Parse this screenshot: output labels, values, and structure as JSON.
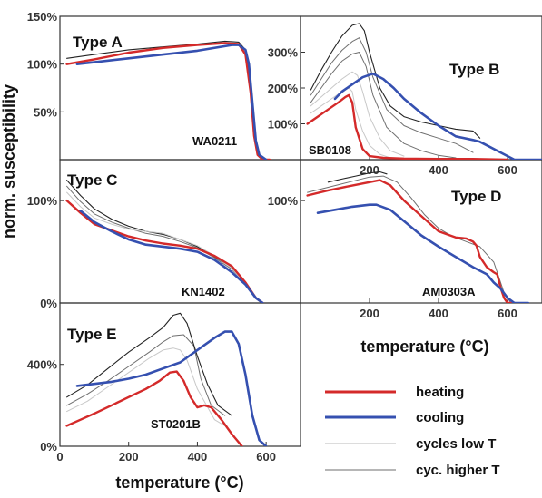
{
  "figure": {
    "ylabel": "norm. susceptibility",
    "xlabel_left": "temperature (°C)",
    "xlabel_right": "temperature (°C)"
  },
  "legend": [
    {
      "label": "heating",
      "color": "#d42a2a"
    },
    {
      "label": "cooling",
      "color": "#3550b0"
    },
    {
      "label": "cycles low T",
      "color": "#c8c8c8"
    },
    {
      "label": "cyc. higher T",
      "color": "#8a8a8a"
    }
  ],
  "colors": {
    "heating": "#d42a2a",
    "cooling": "#3550b0",
    "cycles_low": "#c8c8c8",
    "cycles_high": "#6f6f6f",
    "cycles_dark": "#222222"
  },
  "chart_data": [
    {
      "type": "line",
      "title": "Type A",
      "sample": "WA0211",
      "xlim": [
        0,
        700
      ],
      "ylim": [
        0,
        150
      ],
      "yticks": [
        {
          "v": 50,
          "label": "50%"
        },
        {
          "v": 100,
          "label": "100%"
        },
        {
          "v": 150,
          "label": "150%"
        }
      ],
      "xticks": [],
      "series": [
        {
          "role": "cycles_dark",
          "x": [
            20,
            100,
            200,
            300,
            400,
            480,
            520,
            540,
            555,
            565,
            575,
            590
          ],
          "y": [
            106,
            110,
            115,
            118,
            121,
            124,
            123,
            115,
            80,
            30,
            6,
            0
          ]
        },
        {
          "role": "heating",
          "x": [
            20,
            100,
            200,
            300,
            400,
            480,
            520,
            540,
            555,
            565,
            575,
            590,
            610
          ],
          "y": [
            100,
            105,
            112,
            117,
            120,
            122,
            121,
            110,
            70,
            25,
            5,
            0,
            0
          ]
        },
        {
          "role": "cooling",
          "x": [
            600,
            580,
            570,
            560,
            550,
            540,
            520,
            500,
            400,
            300,
            200,
            100,
            50
          ],
          "y": [
            0,
            5,
            20,
            60,
            100,
            115,
            120,
            120,
            114,
            110,
            106,
            102,
            100
          ]
        }
      ]
    },
    {
      "type": "line",
      "title": "Type B",
      "sample": "SB0108",
      "xlim": [
        0,
        700
      ],
      "ylim": [
        0,
        400
      ],
      "yticks": [
        {
          "v": 100,
          "label": "100%"
        },
        {
          "v": 200,
          "label": "200%"
        },
        {
          "v": 300,
          "label": "300%"
        }
      ],
      "xticks": [
        {
          "v": 200,
          "label": "200"
        },
        {
          "v": 400,
          "label": "400"
        },
        {
          "v": 600,
          "label": "600"
        }
      ],
      "series": [
        {
          "role": "cycles_low",
          "x": [
            30,
            60,
            90,
            120,
            140,
            150,
            160,
            180,
            200,
            230,
            260
          ],
          "y": [
            130,
            150,
            170,
            190,
            200,
            190,
            140,
            80,
            40,
            15,
            5
          ]
        },
        {
          "role": "cycles_low",
          "x": [
            30,
            60,
            90,
            120,
            150,
            165,
            180,
            200,
            230,
            260,
            300
          ],
          "y": [
            150,
            175,
            200,
            225,
            245,
            235,
            190,
            120,
            60,
            25,
            10
          ]
        },
        {
          "role": "cycles_high",
          "x": [
            30,
            60,
            90,
            120,
            150,
            170,
            190,
            210,
            250,
            300,
            350,
            400,
            450
          ],
          "y": [
            160,
            200,
            240,
            275,
            295,
            300,
            260,
            180,
            90,
            45,
            25,
            12,
            5
          ]
        },
        {
          "role": "cycles_high",
          "x": [
            30,
            60,
            90,
            120,
            150,
            170,
            190,
            210,
            250,
            300,
            350,
            400,
            450,
            500
          ],
          "y": [
            180,
            225,
            270,
            305,
            330,
            340,
            300,
            230,
            140,
            95,
            75,
            60,
            45,
            20
          ]
        },
        {
          "role": "cycles_dark",
          "x": [
            30,
            60,
            90,
            120,
            150,
            170,
            185,
            200,
            230,
            260,
            300,
            350,
            400,
            450,
            500,
            520
          ],
          "y": [
            195,
            250,
            300,
            345,
            375,
            380,
            360,
            300,
            200,
            150,
            120,
            105,
            95,
            85,
            80,
            60
          ]
        },
        {
          "role": "heating",
          "x": [
            20,
            50,
            80,
            110,
            130,
            140,
            150,
            160,
            180,
            200,
            240,
            300,
            400,
            500,
            600
          ],
          "y": [
            100,
            120,
            140,
            160,
            175,
            180,
            160,
            90,
            30,
            10,
            5,
            3,
            2,
            2,
            0
          ]
        },
        {
          "role": "cooling",
          "x": [
            700,
            620,
            580,
            540,
            520,
            500,
            450,
            400,
            350,
            300,
            270,
            240,
            210,
            180,
            150,
            120,
            100
          ],
          "y": [
            0,
            0,
            20,
            40,
            50,
            55,
            65,
            95,
            130,
            170,
            200,
            225,
            240,
            230,
            210,
            190,
            170
          ]
        }
      ]
    },
    {
      "type": "line",
      "title": "Type C",
      "sample": "KN1402",
      "xlim": [
        0,
        700
      ],
      "ylim": [
        0,
        140
      ],
      "yticks": [
        {
          "v": 0,
          "label": "0%"
        },
        {
          "v": 100,
          "label": "100%"
        }
      ],
      "xticks": [],
      "series": [
        {
          "role": "cycles_dark",
          "x": [
            20,
            60,
            100,
            150,
            200,
            250,
            300,
            350,
            400,
            450,
            500,
            540,
            570,
            590
          ],
          "y": [
            120,
            105,
            92,
            82,
            75,
            70,
            67,
            62,
            55,
            45,
            35,
            20,
            5,
            0
          ]
        },
        {
          "role": "cycles_high",
          "x": [
            20,
            60,
            100,
            150,
            200,
            250,
            300,
            350,
            400,
            450,
            500,
            540,
            570,
            590
          ],
          "y": [
            114,
            99,
            87,
            79,
            73,
            68,
            65,
            60,
            54,
            44,
            33,
            19,
            5,
            0
          ]
        },
        {
          "role": "cycles_low",
          "x": [
            20,
            60,
            100,
            150,
            200,
            250,
            300,
            350,
            400,
            450,
            500,
            540,
            570,
            590
          ],
          "y": [
            108,
            94,
            83,
            77,
            72,
            70,
            68,
            62,
            56,
            46,
            34,
            18,
            4,
            0
          ]
        },
        {
          "role": "heating",
          "x": [
            20,
            60,
            100,
            150,
            200,
            250,
            300,
            350,
            400,
            450,
            500,
            540,
            570,
            590
          ],
          "y": [
            100,
            88,
            77,
            71,
            65,
            61,
            58,
            56,
            53,
            46,
            36,
            20,
            5,
            0
          ]
        },
        {
          "role": "cooling",
          "x": [
            590,
            570,
            540,
            500,
            450,
            400,
            350,
            300,
            250,
            200,
            150,
            100,
            60
          ],
          "y": [
            0,
            5,
            18,
            30,
            42,
            50,
            53,
            55,
            57,
            62,
            70,
            79,
            90
          ]
        }
      ]
    },
    {
      "type": "line",
      "title": "Type D",
      "sample": "AM0303A",
      "xlim": [
        0,
        700
      ],
      "ylim": [
        0,
        140
      ],
      "yticks": [
        {
          "v": 100,
          "label": "100%"
        }
      ],
      "xticks": [
        {
          "v": 200,
          "label": "200"
        },
        {
          "v": 400,
          "label": "400"
        },
        {
          "v": 600,
          "label": "600"
        }
      ],
      "series": [
        {
          "role": "cycles_dark",
          "x": [
            80,
            120,
            160,
            200,
            230,
            250
          ],
          "y": [
            118,
            121,
            124,
            127,
            128,
            126
          ]
        },
        {
          "role": "cycles_high",
          "x": [
            20,
            80,
            140,
            200,
            240,
            280,
            320,
            360,
            400,
            440,
            480,
            520,
            560,
            590,
            610
          ],
          "y": [
            108,
            113,
            118,
            123,
            124,
            118,
            103,
            86,
            73,
            65,
            60,
            55,
            40,
            10,
            0
          ]
        },
        {
          "role": "heating",
          "x": [
            20,
            80,
            140,
            200,
            230,
            260,
            300,
            350,
            400,
            450,
            480,
            500,
            510,
            520,
            540,
            560,
            570,
            580,
            590,
            600,
            620
          ],
          "y": [
            105,
            110,
            114,
            118,
            120,
            115,
            100,
            85,
            70,
            64,
            63,
            60,
            56,
            45,
            35,
            30,
            28,
            15,
            5,
            0,
            0
          ]
        },
        {
          "role": "cooling",
          "x": [
            660,
            620,
            600,
            580,
            560,
            540,
            500,
            450,
            400,
            350,
            300,
            260,
            220,
            200,
            150,
            100,
            50
          ],
          "y": [
            0,
            0,
            5,
            14,
            20,
            28,
            35,
            45,
            55,
            66,
            80,
            91,
            96,
            96,
            94,
            91,
            88
          ]
        }
      ]
    },
    {
      "type": "line",
      "title": "Type E",
      "sample": "ST0201B",
      "xlim": [
        0,
        700
      ],
      "ylim": [
        0,
        700
      ],
      "yticks": [
        {
          "v": 0,
          "label": "0%"
        },
        {
          "v": 400,
          "label": "400%"
        }
      ],
      "xticks": [
        {
          "v": 0,
          "label": "0"
        },
        {
          "v": 200,
          "label": "200"
        },
        {
          "v": 400,
          "label": "400"
        },
        {
          "v": 600,
          "label": "600"
        }
      ],
      "series": [
        {
          "role": "cycles_low",
          "x": [
            20,
            80,
            140,
            200,
            260,
            300,
            330,
            350,
            370,
            400,
            450,
            480
          ],
          "y": [
            170,
            220,
            290,
            360,
            430,
            470,
            480,
            470,
            420,
            280,
            130,
            100
          ]
        },
        {
          "role": "cycles_high",
          "x": [
            20,
            80,
            140,
            200,
            260,
            300,
            330,
            360,
            390,
            410,
            440,
            480
          ],
          "y": [
            200,
            255,
            320,
            390,
            460,
            510,
            540,
            545,
            490,
            330,
            200,
            150
          ]
        },
        {
          "role": "cycles_dark",
          "x": [
            20,
            80,
            140,
            200,
            260,
            300,
            330,
            350,
            370,
            400,
            430,
            460,
            500
          ],
          "y": [
            240,
            300,
            380,
            460,
            530,
            580,
            640,
            650,
            600,
            440,
            300,
            200,
            150
          ]
        },
        {
          "role": "heating",
          "x": [
            20,
            60,
            100,
            150,
            200,
            250,
            290,
            320,
            340,
            360,
            380,
            400,
            420,
            440,
            470,
            500,
            530
          ],
          "y": [
            100,
            130,
            160,
            200,
            240,
            280,
            320,
            360,
            365,
            320,
            240,
            190,
            200,
            190,
            130,
            60,
            0
          ]
        },
        {
          "role": "cooling",
          "x": [
            600,
            580,
            560,
            540,
            520,
            500,
            480,
            450,
            400,
            350,
            300,
            250,
            200,
            150,
            100,
            50
          ],
          "y": [
            0,
            30,
            150,
            350,
            500,
            560,
            560,
            530,
            470,
            410,
            380,
            350,
            330,
            315,
            305,
            295
          ]
        }
      ]
    }
  ]
}
